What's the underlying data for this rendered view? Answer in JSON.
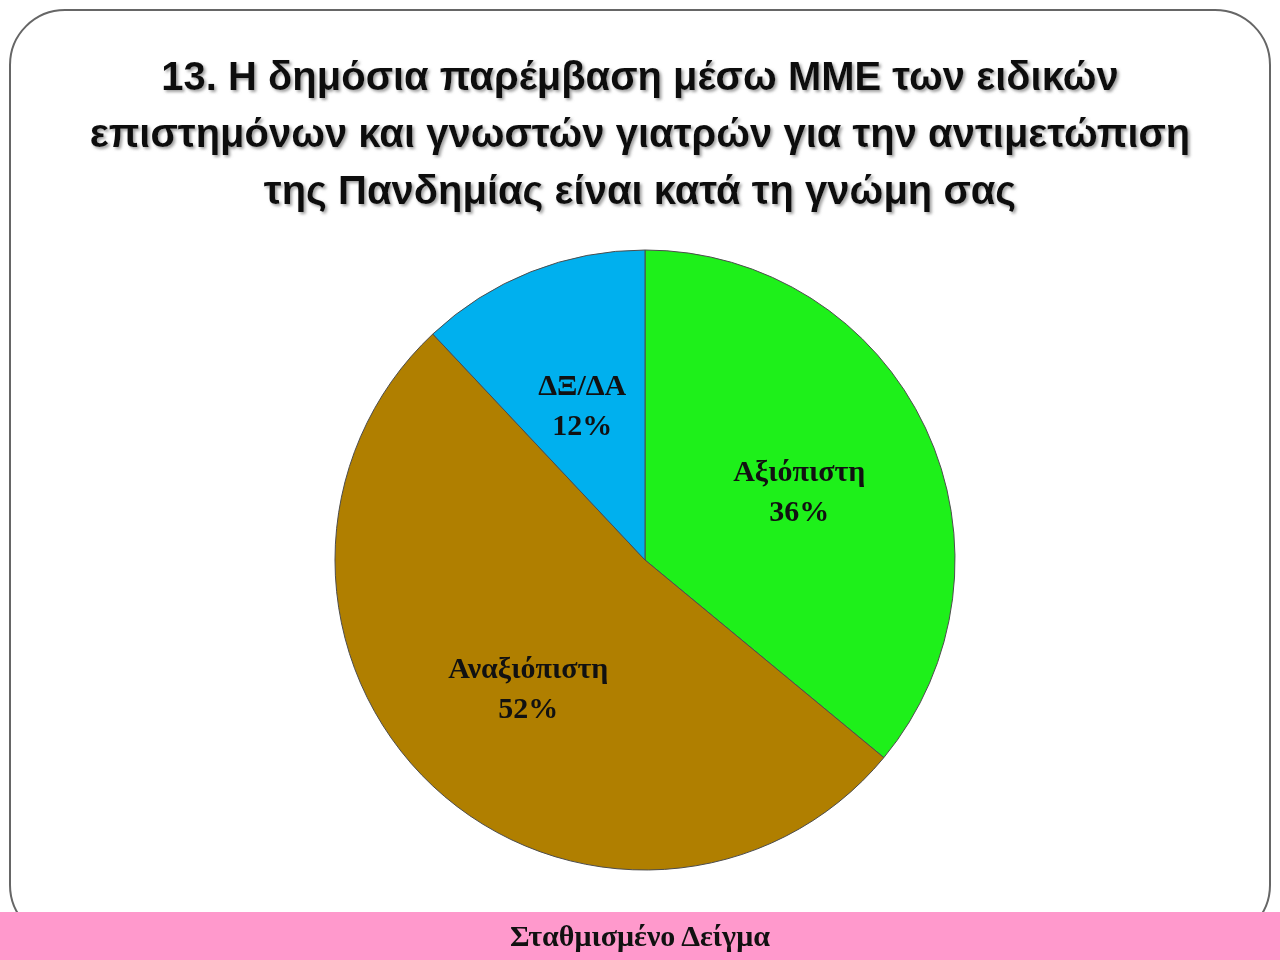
{
  "chart_data": {
    "type": "pie",
    "title": "13. Η δημόσια παρέμβαση μέσω ΜΜΕ των ειδικών επιστημόνων και γνωστών γιατρών για την αντιμετώπιση της Πανδημίας είναι κατά τη γνώμη σας",
    "categories": [
      "Αξιόπιστη",
      "Αναξιόπιστη",
      "ΔΞ/ΔΑ"
    ],
    "values": [
      36,
      52,
      12
    ],
    "colors": [
      "#1ef01a",
      "#b07f00",
      "#00b0ee"
    ],
    "value_labels": [
      "36%",
      "52%",
      "12%"
    ],
    "annotations": [
      "Σταθμισμένο Δείγμα"
    ]
  }
}
